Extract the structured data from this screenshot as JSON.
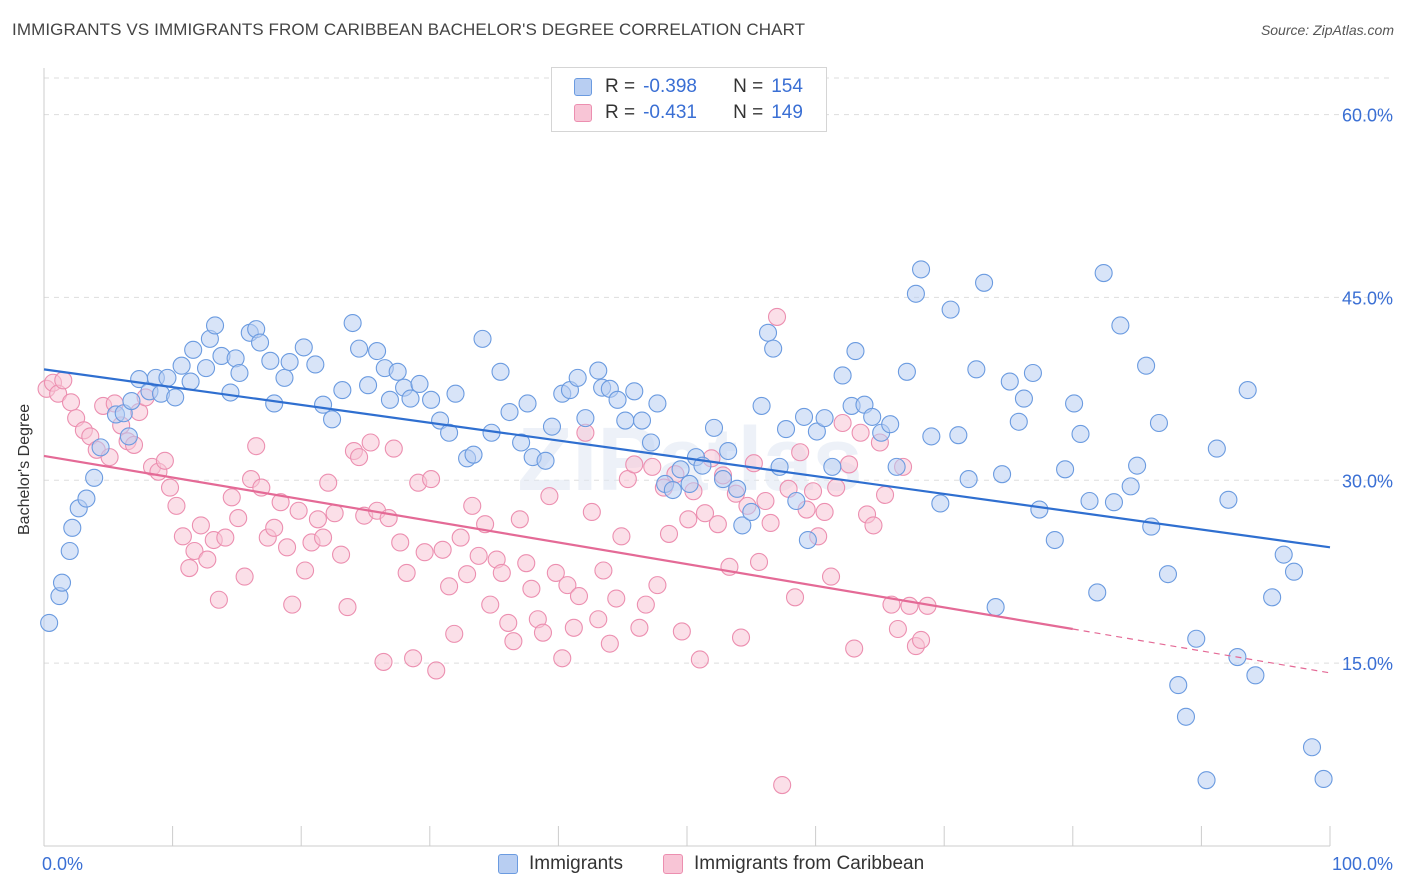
{
  "title": "IMMIGRANTS VS IMMIGRANTS FROM CARIBBEAN BACHELOR'S DEGREE CORRELATION CHART",
  "source": "Source: ZipAtlas.com",
  "watermark": "ZIPatlas",
  "legend_top": {
    "rows": [
      {
        "r_label": "R =",
        "r_value": "-0.398",
        "n_label": "N =",
        "n_value": "154"
      },
      {
        "r_label": "R =",
        "r_value": "-0.431",
        "n_label": "N =",
        "n_value": "149"
      }
    ]
  },
  "legend_bottom": {
    "items": [
      "Immigrants",
      "Immigrants from Caribbean"
    ]
  },
  "colors": {
    "blue_fill": "#b8cef2",
    "blue_stroke": "#6b9be0",
    "blue_line": "#2f6fd0",
    "pink_fill": "#f8c5d6",
    "pink_stroke": "#ec8fb0",
    "pink_line": "#e46a96",
    "tick_label": "#3a6fd4",
    "grid": "#dddddd"
  },
  "chart_data": {
    "type": "scatter",
    "title": "IMMIGRANTS VS IMMIGRANTS FROM CARIBBEAN BACHELOR'S DEGREE CORRELATION CHART",
    "xlabel": "",
    "ylabel": "Bachelor's Degree",
    "xlim": [
      0,
      100
    ],
    "ylim": [
      0,
      63
    ],
    "x_tick_labels": [
      "0.0%",
      "100.0%"
    ],
    "y_ticks": [
      15,
      30,
      45,
      60
    ],
    "y_tick_labels": [
      "15.0%",
      "30.0%",
      "45.0%",
      "60.0%"
    ],
    "series": [
      {
        "name": "Immigrants",
        "r": -0.398,
        "n": 154,
        "trend": {
          "x0": 0,
          "y0": 39.1,
          "x1": 100,
          "y1": 24.5
        },
        "points": [
          [
            0.4,
            18.3
          ],
          [
            1.2,
            20.5
          ],
          [
            1.4,
            21.6
          ],
          [
            2,
            24.2
          ],
          [
            2.2,
            26.1
          ],
          [
            2.7,
            27.7
          ],
          [
            3.3,
            28.5
          ],
          [
            3.9,
            30.2
          ],
          [
            4.4,
            32.7
          ],
          [
            5.6,
            35.4
          ],
          [
            6.2,
            35.5
          ],
          [
            6.6,
            33.6
          ],
          [
            6.8,
            36.5
          ],
          [
            7.4,
            38.3
          ],
          [
            8.2,
            37.3
          ],
          [
            8.7,
            38.4
          ],
          [
            9.1,
            37.1
          ],
          [
            9.6,
            38.4
          ],
          [
            10.2,
            36.8
          ],
          [
            10.7,
            39.4
          ],
          [
            11.4,
            38.1
          ],
          [
            11.6,
            40.7
          ],
          [
            12.6,
            39.2
          ],
          [
            12.9,
            41.6
          ],
          [
            13.3,
            42.7
          ],
          [
            13.8,
            40.2
          ],
          [
            14.5,
            37.2
          ],
          [
            14.9,
            40.0
          ],
          [
            15.2,
            38.8
          ],
          [
            16,
            42.1
          ],
          [
            16.5,
            42.4
          ],
          [
            16.8,
            41.3
          ],
          [
            17.6,
            39.8
          ],
          [
            17.9,
            36.3
          ],
          [
            18.7,
            38.4
          ],
          [
            19.1,
            39.7
          ],
          [
            20.2,
            40.9
          ],
          [
            21.1,
            39.5
          ],
          [
            21.7,
            36.2
          ],
          [
            22.4,
            35.0
          ],
          [
            23.2,
            37.4
          ],
          [
            24,
            42.9
          ],
          [
            24.5,
            40.8
          ],
          [
            25.2,
            37.8
          ],
          [
            25.9,
            40.6
          ],
          [
            26.5,
            39.2
          ],
          [
            26.9,
            36.6
          ],
          [
            27.5,
            38.9
          ],
          [
            28,
            37.6
          ],
          [
            28.5,
            36.7
          ],
          [
            29.2,
            37.9
          ],
          [
            30.1,
            36.6
          ],
          [
            30.8,
            34.9
          ],
          [
            31.5,
            33.9
          ],
          [
            32,
            37.1
          ],
          [
            32.9,
            31.8
          ],
          [
            33.4,
            32.1
          ],
          [
            34.1,
            41.6
          ],
          [
            34.8,
            33.9
          ],
          [
            35.5,
            38.9
          ],
          [
            36.2,
            35.6
          ],
          [
            37.1,
            33.1
          ],
          [
            37.6,
            36.3
          ],
          [
            38,
            31.9
          ],
          [
            39,
            31.6
          ],
          [
            39.5,
            34.4
          ],
          [
            40.3,
            37.1
          ],
          [
            40.9,
            37.4
          ],
          [
            41.5,
            38.4
          ],
          [
            42.1,
            35.1
          ],
          [
            43.1,
            39.0
          ],
          [
            43.4,
            37.6
          ],
          [
            44,
            37.5
          ],
          [
            44.6,
            36.6
          ],
          [
            45.2,
            34.9
          ],
          [
            45.9,
            37.3
          ],
          [
            46.5,
            34.9
          ],
          [
            47.2,
            33.1
          ],
          [
            47.7,
            36.3
          ],
          [
            48.3,
            29.7
          ],
          [
            48.9,
            29.2
          ],
          [
            49.5,
            30.9
          ],
          [
            50.2,
            29.7
          ],
          [
            50.7,
            31.9
          ],
          [
            51.2,
            31.2
          ],
          [
            52.1,
            34.3
          ],
          [
            52.8,
            30.1
          ],
          [
            53.2,
            32.4
          ],
          [
            53.9,
            29.3
          ],
          [
            54.3,
            26.3
          ],
          [
            55,
            27.4
          ],
          [
            55.8,
            36.1
          ],
          [
            56.3,
            42.1
          ],
          [
            56.7,
            40.8
          ],
          [
            57.2,
            31.1
          ],
          [
            57.7,
            34.2
          ],
          [
            58.5,
            28.3
          ],
          [
            59.1,
            35.2
          ],
          [
            59.4,
            25.1
          ],
          [
            60.1,
            34.0
          ],
          [
            60.7,
            35.1
          ],
          [
            61.3,
            31.1
          ],
          [
            62.1,
            38.6
          ],
          [
            62.8,
            36.1
          ],
          [
            63.1,
            40.6
          ],
          [
            63.8,
            36.2
          ],
          [
            64.4,
            35.2
          ],
          [
            65.1,
            33.9
          ],
          [
            65.8,
            34.6
          ],
          [
            66.3,
            31.1
          ],
          [
            67.1,
            38.9
          ],
          [
            67.8,
            45.3
          ],
          [
            68.2,
            47.3
          ],
          [
            69,
            33.6
          ],
          [
            69.7,
            28.1
          ],
          [
            70.5,
            44.0
          ],
          [
            71.1,
            33.7
          ],
          [
            71.9,
            30.1
          ],
          [
            72.5,
            39.1
          ],
          [
            73.1,
            46.2
          ],
          [
            74,
            19.6
          ],
          [
            74.5,
            30.5
          ],
          [
            75.1,
            38.1
          ],
          [
            75.8,
            34.8
          ],
          [
            76.2,
            36.7
          ],
          [
            76.9,
            38.8
          ],
          [
            77.4,
            27.6
          ],
          [
            78.6,
            25.1
          ],
          [
            79.4,
            30.9
          ],
          [
            80.1,
            36.3
          ],
          [
            80.6,
            33.8
          ],
          [
            81.3,
            28.3
          ],
          [
            81.9,
            20.8
          ],
          [
            82.4,
            47.0
          ],
          [
            83.2,
            28.2
          ],
          [
            83.7,
            42.7
          ],
          [
            84.5,
            29.5
          ],
          [
            85,
            31.2
          ],
          [
            85.7,
            39.4
          ],
          [
            86.1,
            26.2
          ],
          [
            86.7,
            34.7
          ],
          [
            87.4,
            22.3
          ],
          [
            88.2,
            13.2
          ],
          [
            88.8,
            10.6
          ],
          [
            89.6,
            17.0
          ],
          [
            90.4,
            5.4
          ],
          [
            91.2,
            32.6
          ],
          [
            92.1,
            28.4
          ],
          [
            92.8,
            15.5
          ],
          [
            93.6,
            37.4
          ],
          [
            94.2,
            14.0
          ],
          [
            95.5,
            20.4
          ],
          [
            96.4,
            23.9
          ],
          [
            97.2,
            22.5
          ],
          [
            98.6,
            8.1
          ],
          [
            99.5,
            5.5
          ]
        ]
      },
      {
        "name": "Immigrants from Caribbean",
        "r": -0.431,
        "n": 149,
        "trend": {
          "x0": 0,
          "y0": 32.0,
          "x1": 80,
          "y1": 17.8
        },
        "trend_dashed": {
          "x0": 80,
          "y0": 17.8,
          "x1": 100,
          "y1": 14.2
        },
        "points": [
          [
            0.2,
            37.5
          ],
          [
            0.7,
            38.0
          ],
          [
            1.1,
            37.1
          ],
          [
            1.5,
            38.2
          ],
          [
            2.1,
            36.4
          ],
          [
            2.5,
            35.1
          ],
          [
            3.1,
            34.1
          ],
          [
            3.6,
            33.6
          ],
          [
            4.1,
            32.5
          ],
          [
            4.6,
            36.1
          ],
          [
            5.1,
            31.9
          ],
          [
            5.5,
            36.3
          ],
          [
            6,
            34.5
          ],
          [
            6.5,
            33.2
          ],
          [
            7,
            32.9
          ],
          [
            7.4,
            35.6
          ],
          [
            7.9,
            36.8
          ],
          [
            8.4,
            31.1
          ],
          [
            8.9,
            30.7
          ],
          [
            9.4,
            31.6
          ],
          [
            9.8,
            29.4
          ],
          [
            10.3,
            27.9
          ],
          [
            10.8,
            25.4
          ],
          [
            11.3,
            22.8
          ],
          [
            11.7,
            24.2
          ],
          [
            12.2,
            26.3
          ],
          [
            12.7,
            23.5
          ],
          [
            13.2,
            25.1
          ],
          [
            13.6,
            20.2
          ],
          [
            14.1,
            25.3
          ],
          [
            14.6,
            28.6
          ],
          [
            15.1,
            26.9
          ],
          [
            15.6,
            22.1
          ],
          [
            16.1,
            30.1
          ],
          [
            16.5,
            32.8
          ],
          [
            16.9,
            29.4
          ],
          [
            17.4,
            25.3
          ],
          [
            17.9,
            26.1
          ],
          [
            18.4,
            28.2
          ],
          [
            18.9,
            24.5
          ],
          [
            19.3,
            19.8
          ],
          [
            19.8,
            27.5
          ],
          [
            20.3,
            22.6
          ],
          [
            20.8,
            24.9
          ],
          [
            21.3,
            26.8
          ],
          [
            21.7,
            25.3
          ],
          [
            22.1,
            29.8
          ],
          [
            22.6,
            27.3
          ],
          [
            23.1,
            23.9
          ],
          [
            23.6,
            19.6
          ],
          [
            24.1,
            32.4
          ],
          [
            24.5,
            31.9
          ],
          [
            24.9,
            27.1
          ],
          [
            25.4,
            33.1
          ],
          [
            25.9,
            27.5
          ],
          [
            26.4,
            15.1
          ],
          [
            26.8,
            26.9
          ],
          [
            27.2,
            32.6
          ],
          [
            27.7,
            24.9
          ],
          [
            28.2,
            22.4
          ],
          [
            28.7,
            15.4
          ],
          [
            29.1,
            29.8
          ],
          [
            29.6,
            24.1
          ],
          [
            30.1,
            30.1
          ],
          [
            30.5,
            14.4
          ],
          [
            31,
            24.3
          ],
          [
            31.5,
            21.3
          ],
          [
            31.9,
            17.4
          ],
          [
            32.4,
            25.3
          ],
          [
            32.9,
            22.3
          ],
          [
            33.3,
            27.9
          ],
          [
            33.8,
            23.8
          ],
          [
            34.3,
            26.4
          ],
          [
            34.7,
            19.8
          ],
          [
            35.2,
            23.5
          ],
          [
            35.6,
            22.4
          ],
          [
            36.1,
            18.3
          ],
          [
            36.5,
            16.8
          ],
          [
            37,
            26.8
          ],
          [
            37.5,
            23.2
          ],
          [
            37.9,
            21.1
          ],
          [
            38.4,
            18.6
          ],
          [
            38.8,
            17.5
          ],
          [
            39.3,
            28.7
          ],
          [
            39.8,
            22.4
          ],
          [
            40.3,
            15.4
          ],
          [
            40.7,
            21.4
          ],
          [
            41.2,
            17.9
          ],
          [
            41.6,
            20.5
          ],
          [
            42.1,
            33.9
          ],
          [
            42.6,
            27.4
          ],
          [
            43.1,
            18.6
          ],
          [
            43.5,
            22.6
          ],
          [
            44,
            16.6
          ],
          [
            44.5,
            20.3
          ],
          [
            44.9,
            25.4
          ],
          [
            45.4,
            30.1
          ],
          [
            45.9,
            31.3
          ],
          [
            46.3,
            17.9
          ],
          [
            46.8,
            19.8
          ],
          [
            47.3,
            31.1
          ],
          [
            47.7,
            21.4
          ],
          [
            48.2,
            29.4
          ],
          [
            48.6,
            25.6
          ],
          [
            49.1,
            30.5
          ],
          [
            49.6,
            17.6
          ],
          [
            50.1,
            26.8
          ],
          [
            50.5,
            29.1
          ],
          [
            51,
            15.3
          ],
          [
            51.4,
            27.3
          ],
          [
            51.9,
            31.8
          ],
          [
            52.4,
            26.4
          ],
          [
            52.8,
            30.4
          ],
          [
            53.3,
            22.9
          ],
          [
            53.8,
            28.9
          ],
          [
            54.2,
            17.1
          ],
          [
            54.7,
            27.9
          ],
          [
            55.2,
            31.4
          ],
          [
            55.6,
            23.3
          ],
          [
            56.1,
            28.3
          ],
          [
            56.5,
            26.5
          ],
          [
            57,
            43.4
          ],
          [
            57.4,
            5.0
          ],
          [
            57.9,
            29.3
          ],
          [
            58.4,
            20.4
          ],
          [
            58.8,
            32.3
          ],
          [
            59.3,
            27.6
          ],
          [
            59.8,
            29.1
          ],
          [
            60.2,
            25.4
          ],
          [
            60.7,
            27.4
          ],
          [
            61.2,
            22.1
          ],
          [
            61.6,
            29.4
          ],
          [
            62.1,
            34.7
          ],
          [
            62.6,
            31.3
          ],
          [
            63,
            16.2
          ],
          [
            63.5,
            33.9
          ],
          [
            64,
            27.2
          ],
          [
            64.5,
            26.3
          ],
          [
            65,
            33.1
          ],
          [
            65.4,
            28.8
          ],
          [
            65.9,
            19.8
          ],
          [
            66.4,
            17.8
          ],
          [
            66.8,
            31.1
          ],
          [
            67.3,
            19.7
          ],
          [
            67.8,
            16.4
          ],
          [
            68.2,
            16.9
          ],
          [
            68.7,
            19.7
          ]
        ]
      }
    ]
  }
}
